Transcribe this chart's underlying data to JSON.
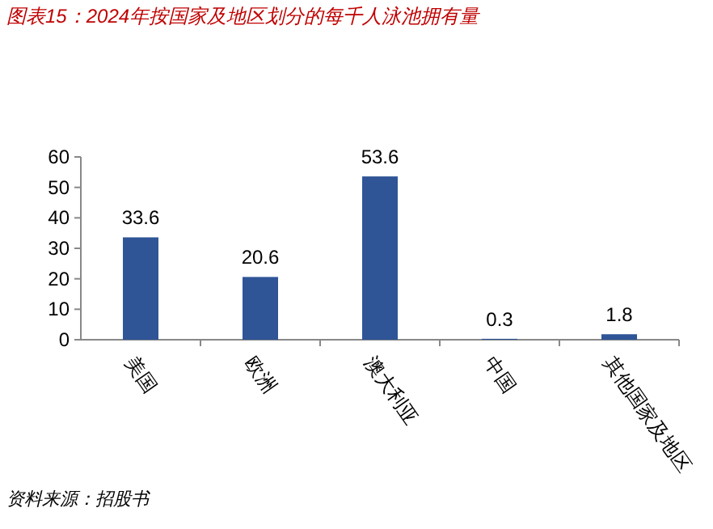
{
  "chart_data": {
    "type": "bar",
    "title": "图表15：2024年按国家及地区划分的每千人泳池拥有量",
    "categories": [
      "美国",
      "欧洲",
      "澳大利亚",
      "中国",
      "其他国家及地区"
    ],
    "values": [
      33.6,
      20.6,
      53.6,
      0.3,
      1.8
    ],
    "color": "#2f5597",
    "ylim": [
      0,
      60
    ],
    "yticks": [
      0,
      10,
      20,
      30,
      40,
      50,
      60
    ],
    "data_labels": true,
    "grid": false,
    "annotations": [
      "资料来源：招股书"
    ]
  }
}
